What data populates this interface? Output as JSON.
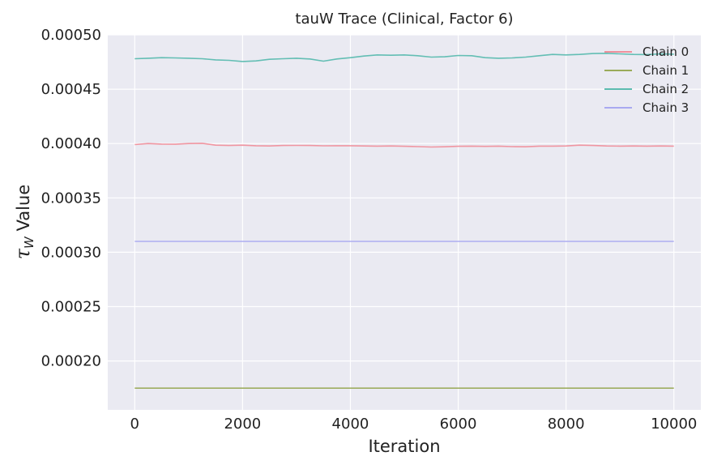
{
  "chart_data": {
    "type": "line",
    "title": "tauW Trace (Clinical, Factor 6)",
    "xlabel": "Iteration",
    "ylabel_symbol": "τ",
    "ylabel_subscript": "W",
    "ylabel_suffix": " Value",
    "xlim": [
      -500,
      10500
    ],
    "ylim": [
      0.000155,
      0.0005
    ],
    "x_ticks": [
      0,
      2000,
      4000,
      6000,
      8000,
      10000
    ],
    "x_tick_labels": [
      "0",
      "2000",
      "4000",
      "6000",
      "8000",
      "10000"
    ],
    "y_ticks": [
      0.0002,
      0.00025,
      0.0003,
      0.00035,
      0.0004,
      0.00045,
      0.0005
    ],
    "y_tick_labels": [
      "0.00020",
      "0.00025",
      "0.00030",
      "0.00035",
      "0.00040",
      "0.00045",
      "0.00050"
    ],
    "grid": true,
    "legend_position": "top-right",
    "series": [
      {
        "name": "Chain 0",
        "color": "#f0909c",
        "x": [
          0,
          250,
          500,
          750,
          1000,
          1250,
          1500,
          1750,
          2000,
          2250,
          2500,
          2750,
          3000,
          3250,
          3500,
          3750,
          4000,
          4250,
          4500,
          4750,
          5000,
          5250,
          5500,
          5750,
          6000,
          6250,
          6500,
          6750,
          7000,
          7250,
          7500,
          7750,
          8000,
          8250,
          8500,
          8750,
          9000,
          9250,
          9500,
          9750,
          10000
        ],
        "y": [
          0.000399,
          0.0004,
          0.0003995,
          0.0003993,
          0.0004,
          0.0004002,
          0.0003985,
          0.0003982,
          0.0003985,
          0.000398,
          0.0003978,
          0.0003982,
          0.0003983,
          0.0003982,
          0.0003979,
          0.000398,
          0.000398,
          0.0003978,
          0.0003976,
          0.0003978,
          0.0003975,
          0.0003972,
          0.0003968,
          0.000397,
          0.0003975,
          0.0003976,
          0.0003974,
          0.0003976,
          0.0003972,
          0.000397,
          0.0003976,
          0.0003976,
          0.0003978,
          0.0003985,
          0.0003982,
          0.0003978,
          0.0003976,
          0.0003978,
          0.0003976,
          0.0003978,
          0.0003976
        ]
      },
      {
        "name": "Chain 1",
        "color": "#9aab5a",
        "x": [
          0,
          10000
        ],
        "y": [
          0.000175,
          0.000175
        ]
      },
      {
        "name": "Chain 2",
        "color": "#5cbcb0",
        "x": [
          0,
          250,
          500,
          750,
          1000,
          1250,
          1500,
          1750,
          2000,
          2250,
          2500,
          2750,
          3000,
          3250,
          3500,
          3750,
          4000,
          4250,
          4500,
          4750,
          5000,
          5250,
          5500,
          5750,
          6000,
          6250,
          6500,
          6750,
          7000,
          7250,
          7500,
          7750,
          8000,
          8250,
          8500,
          8750,
          9000,
          9250,
          9500,
          9750,
          10000
        ],
        "y": [
          0.000478,
          0.0004785,
          0.000479,
          0.0004788,
          0.0004785,
          0.000478,
          0.000477,
          0.0004765,
          0.0004755,
          0.000476,
          0.0004775,
          0.000478,
          0.0004785,
          0.0004778,
          0.0004758,
          0.0004778,
          0.000479,
          0.0004805,
          0.0004815,
          0.0004812,
          0.0004815,
          0.0004808,
          0.0004795,
          0.0004798,
          0.000481,
          0.0004808,
          0.000479,
          0.0004785,
          0.0004788,
          0.0004795,
          0.0004808,
          0.000482,
          0.0004815,
          0.000482,
          0.0004828,
          0.000483,
          0.0004825,
          0.000482,
          0.0004818,
          0.0004825,
          0.0004822
        ]
      },
      {
        "name": "Chain 3",
        "color": "#a9a9f0",
        "x": [
          0,
          10000
        ],
        "y": [
          0.00031,
          0.00031
        ]
      }
    ]
  }
}
